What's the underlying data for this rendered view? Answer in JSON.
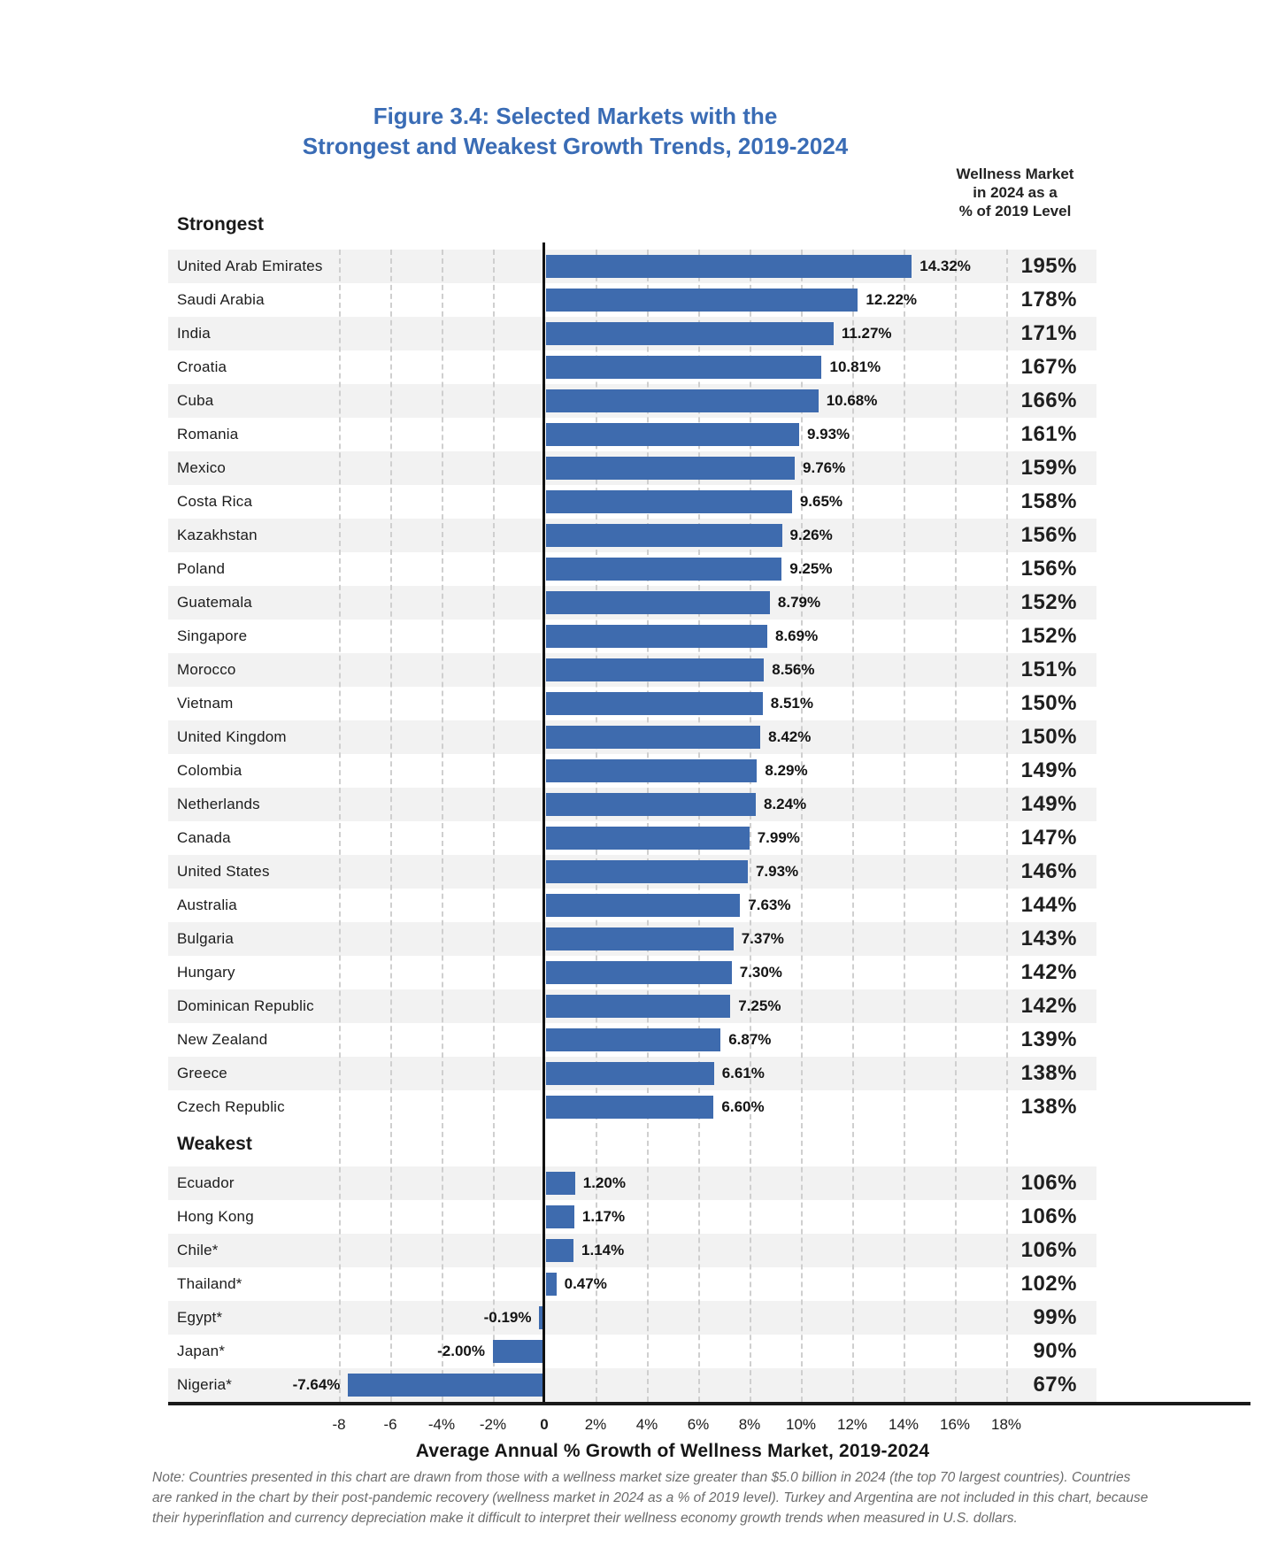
{
  "figure": {
    "title_line1": "Figure 3.4: Selected  Markets with the",
    "title_line2": "Strongest and Weakest Growth Trends, 2019-2024",
    "right_header_line1": "Wellness Market",
    "right_header_line2": "in 2024 as a",
    "right_header_line3": "% of 2019 Level",
    "section_strongest_label": "Strongest",
    "section_weakest_label": "Weakest",
    "x_axis_title": "Average Annual % Growth of Wellness Market, 2019-2024",
    "note": "Note: Countries presented in this chart are drawn from those with a wellness market size greater than $5.0 billion in 2024 (the top 70 largest countries). Countries are ranked in the chart by their post-pandemic recovery (wellness market in 2024 as a % of 2019 level). Turkey and Argentina are not included in this chart, because their hyperinflation and currency depreciation make it difficult to interpret their wellness economy growth trends when measured in U.S. dollars."
  },
  "chart_data": {
    "type": "bar",
    "orientation": "horizontal",
    "title": "Figure 3.4: Selected Markets with the Strongest and Weakest Growth Trends, 2019-2024",
    "xlabel": "Average Annual % Growth of Wellness Market, 2019-2024",
    "secondary_column_label": "Wellness Market in 2024 as a % of 2019 Level",
    "xlim": [
      -8,
      18
    ],
    "grid": "dashed vertical every 2%",
    "bar_color": "#3e6bae",
    "band_color": "#f2f2f2",
    "title_color": "#3a6cb5",
    "x_ticks": [
      {
        "value": -8,
        "label": "-8"
      },
      {
        "value": -6,
        "label": "-6"
      },
      {
        "value": -4,
        "label": "-4%"
      },
      {
        "value": -2,
        "label": "-2%"
      },
      {
        "value": 0,
        "label": "0"
      },
      {
        "value": 2,
        "label": "2%"
      },
      {
        "value": 4,
        "label": "4%"
      },
      {
        "value": 6,
        "label": "6%"
      },
      {
        "value": 8,
        "label": "8%"
      },
      {
        "value": 10,
        "label": "10%"
      },
      {
        "value": 12,
        "label": "12%"
      },
      {
        "value": 14,
        "label": "14%"
      },
      {
        "value": 16,
        "label": "16%"
      },
      {
        "value": 18,
        "label": "18%"
      }
    ],
    "strongest": [
      {
        "country": "United Arab Emirates",
        "growth_pct": 14.32,
        "growth_label": "14.32%",
        "recovery_pct": 195,
        "recovery_label": "195%"
      },
      {
        "country": "Saudi Arabia",
        "growth_pct": 12.22,
        "growth_label": "12.22%",
        "recovery_pct": 178,
        "recovery_label": "178%"
      },
      {
        "country": "India",
        "growth_pct": 11.27,
        "growth_label": "11.27%",
        "recovery_pct": 171,
        "recovery_label": "171%"
      },
      {
        "country": "Croatia",
        "growth_pct": 10.81,
        "growth_label": "10.81%",
        "recovery_pct": 167,
        "recovery_label": "167%"
      },
      {
        "country": "Cuba",
        "growth_pct": 10.68,
        "growth_label": "10.68%",
        "recovery_pct": 166,
        "recovery_label": "166%"
      },
      {
        "country": "Romania",
        "growth_pct": 9.93,
        "growth_label": "9.93%",
        "recovery_pct": 161,
        "recovery_label": "161%"
      },
      {
        "country": "Mexico",
        "growth_pct": 9.76,
        "growth_label": "9.76%",
        "recovery_pct": 159,
        "recovery_label": "159%"
      },
      {
        "country": "Costa Rica",
        "growth_pct": 9.65,
        "growth_label": "9.65%",
        "recovery_pct": 158,
        "recovery_label": "158%"
      },
      {
        "country": "Kazakhstan",
        "growth_pct": 9.26,
        "growth_label": "9.26%",
        "recovery_pct": 156,
        "recovery_label": "156%"
      },
      {
        "country": "Poland",
        "growth_pct": 9.25,
        "growth_label": "9.25%",
        "recovery_pct": 156,
        "recovery_label": "156%"
      },
      {
        "country": "Guatemala",
        "growth_pct": 8.79,
        "growth_label": "8.79%",
        "recovery_pct": 152,
        "recovery_label": "152%"
      },
      {
        "country": "Singapore",
        "growth_pct": 8.69,
        "growth_label": "8.69%",
        "recovery_pct": 152,
        "recovery_label": "152%"
      },
      {
        "country": "Morocco",
        "growth_pct": 8.56,
        "growth_label": "8.56%",
        "recovery_pct": 151,
        "recovery_label": "151%"
      },
      {
        "country": "Vietnam",
        "growth_pct": 8.51,
        "growth_label": "8.51%",
        "recovery_pct": 150,
        "recovery_label": "150%"
      },
      {
        "country": "United Kingdom",
        "growth_pct": 8.42,
        "growth_label": "8.42%",
        "recovery_pct": 150,
        "recovery_label": "150%"
      },
      {
        "country": "Colombia",
        "growth_pct": 8.29,
        "growth_label": "8.29%",
        "recovery_pct": 149,
        "recovery_label": "149%"
      },
      {
        "country": "Netherlands",
        "growth_pct": 8.24,
        "growth_label": "8.24%",
        "recovery_pct": 149,
        "recovery_label": "149%"
      },
      {
        "country": "Canada",
        "growth_pct": 7.99,
        "growth_label": "7.99%",
        "recovery_pct": 147,
        "recovery_label": "147%"
      },
      {
        "country": "United States",
        "growth_pct": 7.93,
        "growth_label": "7.93%",
        "recovery_pct": 146,
        "recovery_label": "146%"
      },
      {
        "country": "Australia",
        "growth_pct": 7.63,
        "growth_label": "7.63%",
        "recovery_pct": 144,
        "recovery_label": "144%"
      },
      {
        "country": "Bulgaria",
        "growth_pct": 7.37,
        "growth_label": "7.37%",
        "recovery_pct": 143,
        "recovery_label": "143%"
      },
      {
        "country": "Hungary",
        "growth_pct": 7.3,
        "growth_label": "7.30%",
        "recovery_pct": 142,
        "recovery_label": "142%"
      },
      {
        "country": "Dominican Republic",
        "growth_pct": 7.25,
        "growth_label": "7.25%",
        "recovery_pct": 142,
        "recovery_label": "142%"
      },
      {
        "country": "New Zealand",
        "growth_pct": 6.87,
        "growth_label": "6.87%",
        "recovery_pct": 139,
        "recovery_label": "139%"
      },
      {
        "country": "Greece",
        "growth_pct": 6.61,
        "growth_label": "6.61%",
        "recovery_pct": 138,
        "recovery_label": "138%"
      },
      {
        "country": "Czech Republic",
        "growth_pct": 6.6,
        "growth_label": "6.60%",
        "recovery_pct": 138,
        "recovery_label": "138%"
      }
    ],
    "weakest": [
      {
        "country": "Ecuador",
        "growth_pct": 1.2,
        "growth_label": "1.20%",
        "recovery_pct": 106,
        "recovery_label": "106%"
      },
      {
        "country": "Hong Kong",
        "growth_pct": 1.17,
        "growth_label": "1.17%",
        "recovery_pct": 106,
        "recovery_label": "106%"
      },
      {
        "country": "Chile*",
        "growth_pct": 1.14,
        "growth_label": "1.14%",
        "recovery_pct": 106,
        "recovery_label": "106%"
      },
      {
        "country": "Thailand*",
        "growth_pct": 0.47,
        "growth_label": "0.47%",
        "recovery_pct": 102,
        "recovery_label": "102%"
      },
      {
        "country": "Egypt*",
        "growth_pct": -0.19,
        "growth_label": "-0.19%",
        "recovery_pct": 99,
        "recovery_label": "99%"
      },
      {
        "country": "Japan*",
        "growth_pct": -2.0,
        "growth_label": "-2.00%",
        "recovery_pct": 90,
        "recovery_label": "90%"
      },
      {
        "country": "Nigeria*",
        "growth_pct": -7.64,
        "growth_label": "-7.64%",
        "recovery_pct": 67,
        "recovery_label": "67%"
      }
    ]
  }
}
